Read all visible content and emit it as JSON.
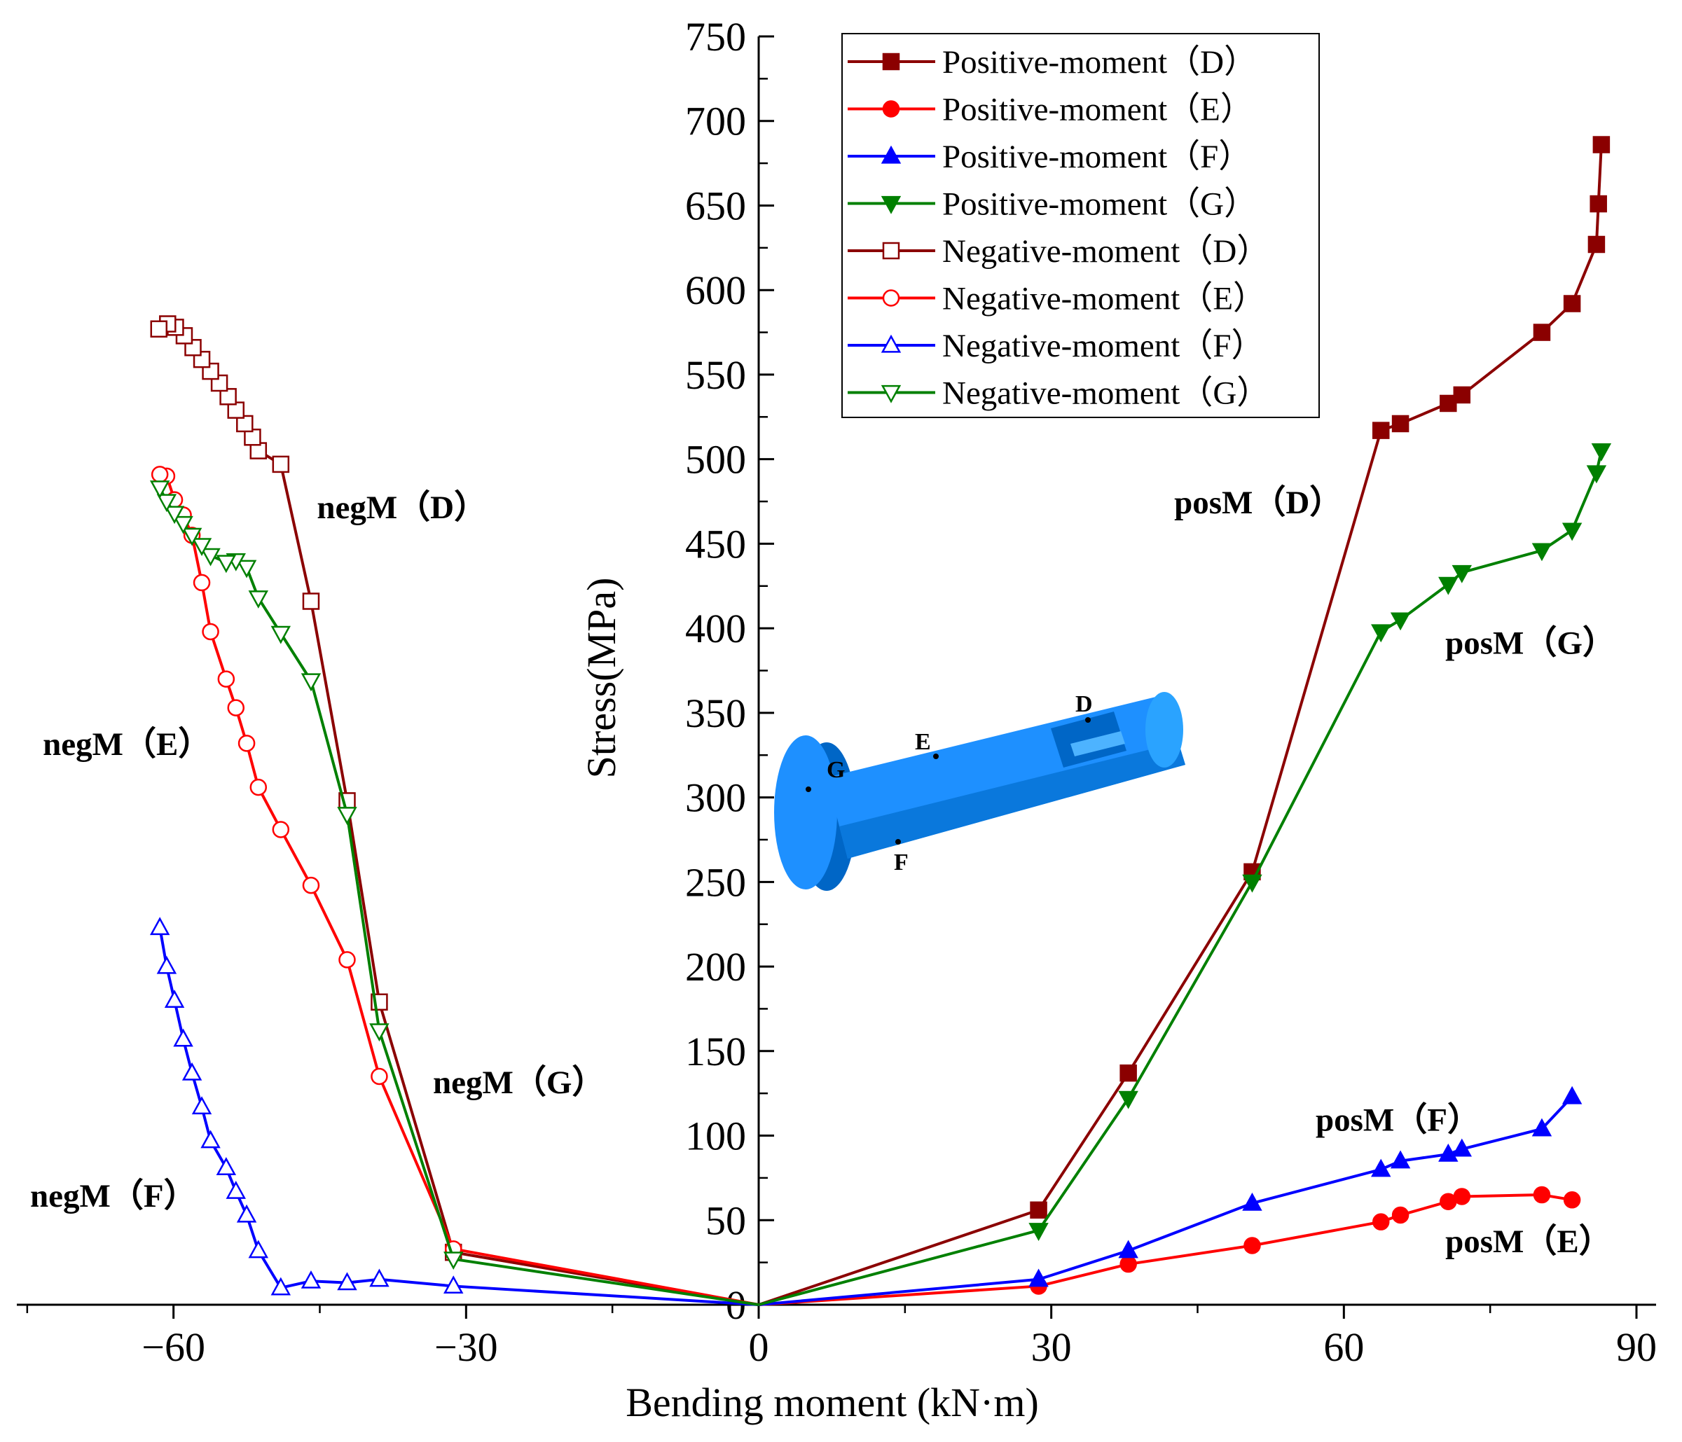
{
  "chart_data": {
    "type": "line",
    "title": "",
    "xlabel": "Bending moment (kN·m)",
    "ylabel": "Stress(MPa)",
    "xlim": [
      -75,
      90
    ],
    "ylim": [
      0,
      750
    ],
    "xticks": [
      -60,
      -30,
      0,
      30,
      60,
      90
    ],
    "xtick_labels": [
      "−60",
      "−30",
      "0",
      "30",
      "60",
      "90"
    ],
    "yticks": [
      0,
      50,
      100,
      150,
      200,
      250,
      300,
      350,
      400,
      450,
      500,
      550,
      600,
      650,
      700,
      750
    ],
    "ytick_labels": [
      "0",
      "50",
      "100",
      "150",
      "200",
      "250",
      "300",
      "350",
      "400",
      "450",
      "500",
      "550",
      "600",
      "650",
      "700",
      "750"
    ],
    "legend_position": "top-center",
    "series": [
      {
        "name": "Positive-moment（D）",
        "color": "#8b0000",
        "marker": "square",
        "filled": true,
        "x": [
          0,
          28.7,
          37.9,
          50.6,
          63.8,
          65.8,
          70.7,
          72.1,
          80.3,
          83.4,
          85.9,
          86.1,
          86.4
        ],
        "y": [
          0,
          56,
          137,
          256,
          517,
          521,
          533,
          538,
          575,
          592,
          627,
          651,
          686
        ]
      },
      {
        "name": "Positive-moment（E）",
        "color": "#ff0000",
        "marker": "circle",
        "filled": true,
        "x": [
          0,
          28.7,
          37.9,
          50.6,
          63.8,
          65.8,
          70.7,
          72.1,
          80.3,
          83.4
        ],
        "y": [
          0,
          11,
          24,
          35,
          49,
          53,
          61,
          64,
          65,
          62
        ]
      },
      {
        "name": "Positive-moment（F）",
        "color": "#0000ff",
        "marker": "triangle-up",
        "filled": true,
        "x": [
          0,
          28.7,
          37.9,
          50.6,
          63.8,
          65.8,
          70.7,
          72.1,
          80.3,
          83.4
        ],
        "y": [
          0,
          15,
          32,
          60,
          80,
          85,
          89,
          92,
          104,
          123
        ]
      },
      {
        "name": "Positive-moment（G）",
        "color": "#008000",
        "marker": "triangle-down",
        "filled": true,
        "x": [
          0,
          28.7,
          37.9,
          50.6,
          63.8,
          65.8,
          70.7,
          72.1,
          80.3,
          83.4,
          85.9,
          86.4
        ],
        "y": [
          0,
          44,
          122,
          250,
          398,
          405,
          426,
          433,
          446,
          458,
          492,
          505
        ]
      },
      {
        "name": "Negative-moment（D）",
        "color": "#8b0000",
        "marker": "square",
        "filled": false,
        "x": [
          0,
          -31.3,
          -38.9,
          -42.2,
          -45.9,
          -49,
          -51.3,
          -51.9,
          -52.7,
          -53.6,
          -54.4,
          -55.3,
          -56.2,
          -57.1,
          -58,
          -58.9,
          -59.8,
          -60.6,
          -61.5
        ],
        "y": [
          0,
          31,
          179,
          298,
          416,
          497,
          505,
          513,
          521,
          529,
          537,
          545,
          552,
          559,
          566,
          573,
          578,
          580,
          577
        ]
      },
      {
        "name": "Negative-moment（E）",
        "color": "#ff0000",
        "marker": "circle",
        "filled": false,
        "x": [
          0,
          -31.3,
          -38.9,
          -42.2,
          -45.9,
          -49,
          -51.3,
          -52.5,
          -53.6,
          -54.6,
          -56.2,
          -57.1,
          -58.1,
          -59,
          -59.9,
          -60.7,
          -61.4
        ],
        "y": [
          0,
          33,
          135,
          204,
          248,
          281,
          306,
          332,
          353,
          370,
          398,
          427,
          455,
          467,
          476,
          490,
          491
        ]
      },
      {
        "name": "Negative-moment（F）",
        "color": "#0000ff",
        "marker": "triangle-up",
        "filled": false,
        "x": [
          0,
          -31.3,
          -38.9,
          -42.2,
          -45.9,
          -49,
          -51.3,
          -52.5,
          -53.6,
          -54.6,
          -56.2,
          -57.1,
          -58.1,
          -59,
          -59.9,
          -60.7,
          -61.4
        ],
        "y": [
          0,
          11,
          15,
          13,
          14,
          10,
          32,
          53,
          67,
          81,
          97,
          117,
          137,
          157,
          180,
          200,
          223
        ]
      },
      {
        "name": "Negative-moment（G）",
        "color": "#008000",
        "marker": "triangle-down",
        "filled": false,
        "x": [
          0,
          -31.3,
          -38.9,
          -42.2,
          -45.9,
          -49,
          -51.3,
          -52.5,
          -53.6,
          -54.6,
          -56.2,
          -57.1,
          -58.1,
          -59,
          -59.9,
          -60.7,
          -61.4
        ],
        "y": [
          0,
          27,
          162,
          290,
          369,
          397,
          418,
          436,
          440,
          439,
          443,
          449,
          455,
          462,
          468,
          475,
          483
        ]
      }
    ],
    "annotations": [
      {
        "text": "negM（D）",
        "x": -45.3,
        "y": 465
      },
      {
        "text": "negM（E）",
        "x": -73.4,
        "y": 325
      },
      {
        "text": "negM（G）",
        "x": -33.4,
        "y": 125
      },
      {
        "text": "negM（F）",
        "x": -74.7,
        "y": 58
      },
      {
        "text": "posM（D）",
        "x": 42.6,
        "y": 468
      },
      {
        "text": "posM（G）",
        "x": 70.4,
        "y": 385
      },
      {
        "text": "posM（F）",
        "x": 57.1,
        "y": 103
      },
      {
        "text": "posM（E）",
        "x": 70.4,
        "y": 31
      }
    ],
    "inset_labels": [
      "D",
      "E",
      "G",
      "F"
    ]
  },
  "colors": {
    "shaft_dark": "#0077d9",
    "shaft": "#1e90ff",
    "shaft_light": "#2aa3ff"
  }
}
